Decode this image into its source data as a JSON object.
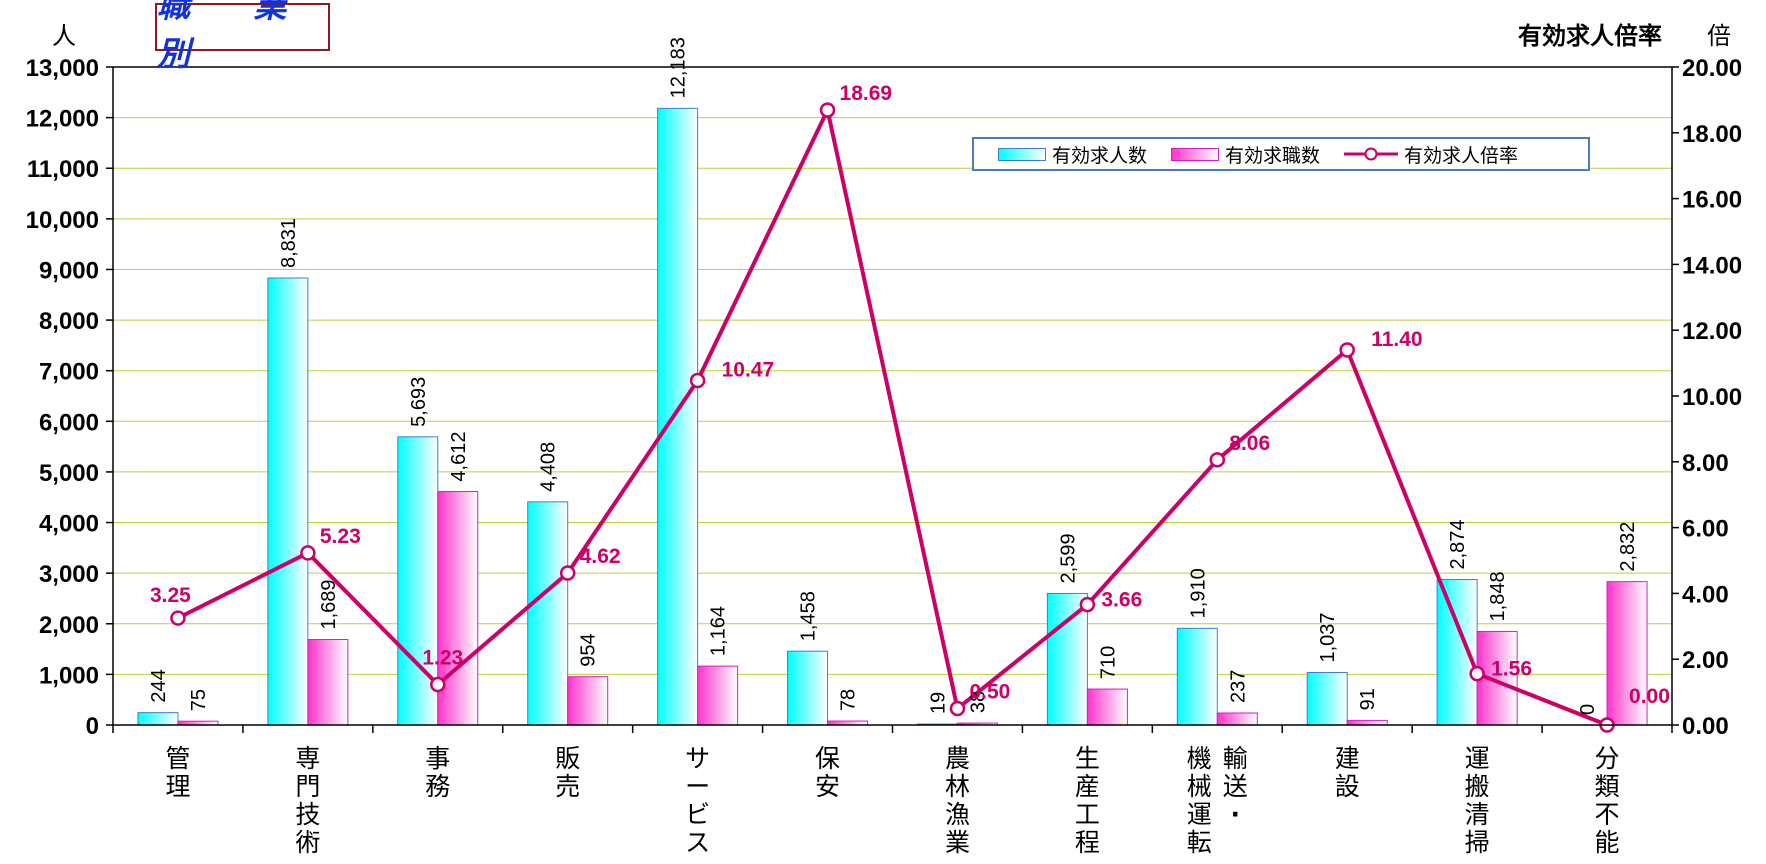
{
  "title": "職 業 別",
  "left_unit": "人",
  "right_title": "有効求人倍率",
  "right_unit": "倍",
  "legend": {
    "item1": "有効求人数",
    "item2": "有効求職数",
    "item3": "有効求人倍率"
  },
  "colors": {
    "bar1_top": "#00ffff",
    "bar1_bottom": "#ffffff",
    "bar1_border": "#3a7fd0",
    "bar2_top": "#ff33cc",
    "bar2_bottom": "#ffffff",
    "bar2_border": "#d020c0",
    "line": "#cc0066",
    "grid": "#bfcf3a"
  },
  "chart_data": {
    "type": "bar",
    "categories": [
      "管理",
      "専門技術",
      "事務",
      "販売",
      "サービス",
      "保安",
      "農林漁業",
      "生産工程",
      "輸送・機械運転",
      "建設",
      "運搬清掃",
      "分類不能"
    ],
    "category_labels": [
      [
        "管理"
      ],
      [
        "専門技術"
      ],
      [
        "事務"
      ],
      [
        "販売"
      ],
      [
        "サービス"
      ],
      [
        "保安"
      ],
      [
        "農林漁業"
      ],
      [
        "生産工程"
      ],
      [
        "機械運転",
        "輸送・"
      ],
      [
        "建設"
      ],
      [
        "運搬清掃"
      ],
      [
        "分類不能"
      ]
    ],
    "series": [
      {
        "name": "有効求人数",
        "type": "bar",
        "axis": "left",
        "values": [
          244,
          8831,
          5693,
          4408,
          12183,
          1458,
          19,
          2599,
          1910,
          1037,
          2874,
          0
        ],
        "labels": [
          "244",
          "8,831",
          "5,693",
          "4,408",
          "12,183",
          "1,458",
          "19",
          "2,599",
          "1,910",
          "1,037",
          "2,874",
          "0"
        ]
      },
      {
        "name": "有効求職数",
        "type": "bar",
        "axis": "left",
        "values": [
          75,
          1689,
          4612,
          954,
          1164,
          78,
          38,
          710,
          237,
          91,
          1848,
          2832
        ],
        "labels": [
          "75",
          "1,689",
          "4,612",
          "954",
          "1,164",
          "78",
          "38",
          "710",
          "237",
          "91",
          "1,848",
          "2,832"
        ]
      },
      {
        "name": "有効求人倍率",
        "type": "line",
        "axis": "right",
        "values": [
          3.25,
          5.23,
          1.23,
          4.62,
          10.47,
          18.69,
          0.5,
          3.66,
          8.06,
          11.4,
          1.56,
          0.0
        ],
        "labels": [
          "3.25",
          "5.23",
          "1.23",
          "4.62",
          "10.47",
          "18.69",
          "0.50",
          "3.66",
          "8.06",
          "11.40",
          "1.56",
          "0.00"
        ]
      }
    ],
    "y_left": {
      "min": 0,
      "max": 13000,
      "step": 1000,
      "tick_labels": [
        "0",
        "1,000",
        "2,000",
        "3,000",
        "4,000",
        "5,000",
        "6,000",
        "7,000",
        "8,000",
        "9,000",
        "10,000",
        "11,000",
        "12,000",
        "13,000"
      ]
    },
    "y_right": {
      "min": 0,
      "max": 20,
      "step": 2,
      "tick_labels": [
        "0.00",
        "2.00",
        "4.00",
        "6.00",
        "8.00",
        "10.00",
        "12.00",
        "14.00",
        "16.00",
        "18.00",
        "20.00"
      ]
    },
    "grid": true,
    "legend_position": "top-right"
  }
}
